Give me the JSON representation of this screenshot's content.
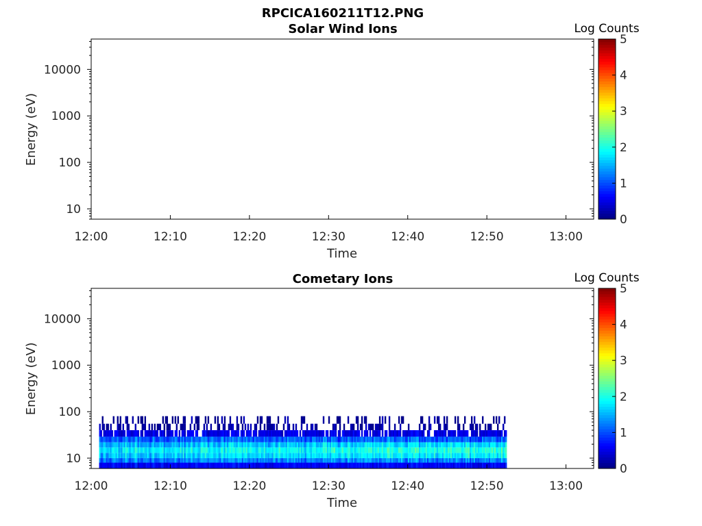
{
  "figure": {
    "title": "RPCICA160211T12.PNG"
  },
  "chart_data": [
    {
      "type": "heatmap",
      "title": "Solar Wind Ions",
      "xlabel": "Time",
      "ylabel": "Energy (eV)",
      "x_ticks": [
        "12:00",
        "12:10",
        "12:20",
        "12:30",
        "12:40",
        "12:50",
        "13:00"
      ],
      "xlim_minutes_after_1200": [
        0,
        63.5
      ],
      "y_scale": "log",
      "y_ticks": [
        10,
        100,
        1000,
        10000
      ],
      "y_tick_labels": [
        "10",
        "100",
        "1000",
        "10000"
      ],
      "ylim": [
        6,
        45000
      ],
      "colorbar": {
        "label": "Log Counts",
        "ticks": [
          0,
          1,
          2,
          3,
          4,
          5
        ],
        "range": [
          0,
          5
        ],
        "colormap": "jet"
      },
      "data_present": false,
      "grid": false
    },
    {
      "type": "heatmap",
      "title": "Cometary Ions",
      "xlabel": "Time",
      "ylabel": "Energy (eV)",
      "x_ticks": [
        "12:00",
        "12:10",
        "12:20",
        "12:30",
        "12:40",
        "12:50",
        "13:00"
      ],
      "xlim_minutes_after_1200": [
        0,
        63.5
      ],
      "y_scale": "log",
      "y_ticks": [
        10,
        100,
        1000,
        10000
      ],
      "y_tick_labels": [
        "10",
        "100",
        "1000",
        "10000"
      ],
      "ylim": [
        6,
        45000
      ],
      "colorbar": {
        "label": "Log Counts",
        "ticks": [
          0,
          1,
          2,
          3,
          4,
          5
        ],
        "range": [
          0,
          5
        ],
        "colormap": "jet"
      },
      "data_present": true,
      "data_time_range_minutes": [
        1,
        52.5
      ],
      "energy_bands": [
        {
          "e_low": 6,
          "e_high": 8,
          "log_counts": 0.6
        },
        {
          "e_low": 8,
          "e_high": 10,
          "log_counts": 1.3
        },
        {
          "e_low": 10,
          "e_high": 13,
          "log_counts": 1.6
        },
        {
          "e_low": 13,
          "e_high": 17,
          "log_counts": 1.8
        },
        {
          "e_low": 17,
          "e_high": 22,
          "log_counts": 1.5
        },
        {
          "e_low": 22,
          "e_high": 29,
          "log_counts": 1.1
        },
        {
          "e_low": 29,
          "e_high": 40,
          "log_counts": 0.5
        },
        {
          "e_low": 40,
          "e_high": 55,
          "log_counts": 0.15
        },
        {
          "e_low": 55,
          "e_high": 80,
          "log_counts": 0.05
        }
      ],
      "grid": false
    }
  ]
}
